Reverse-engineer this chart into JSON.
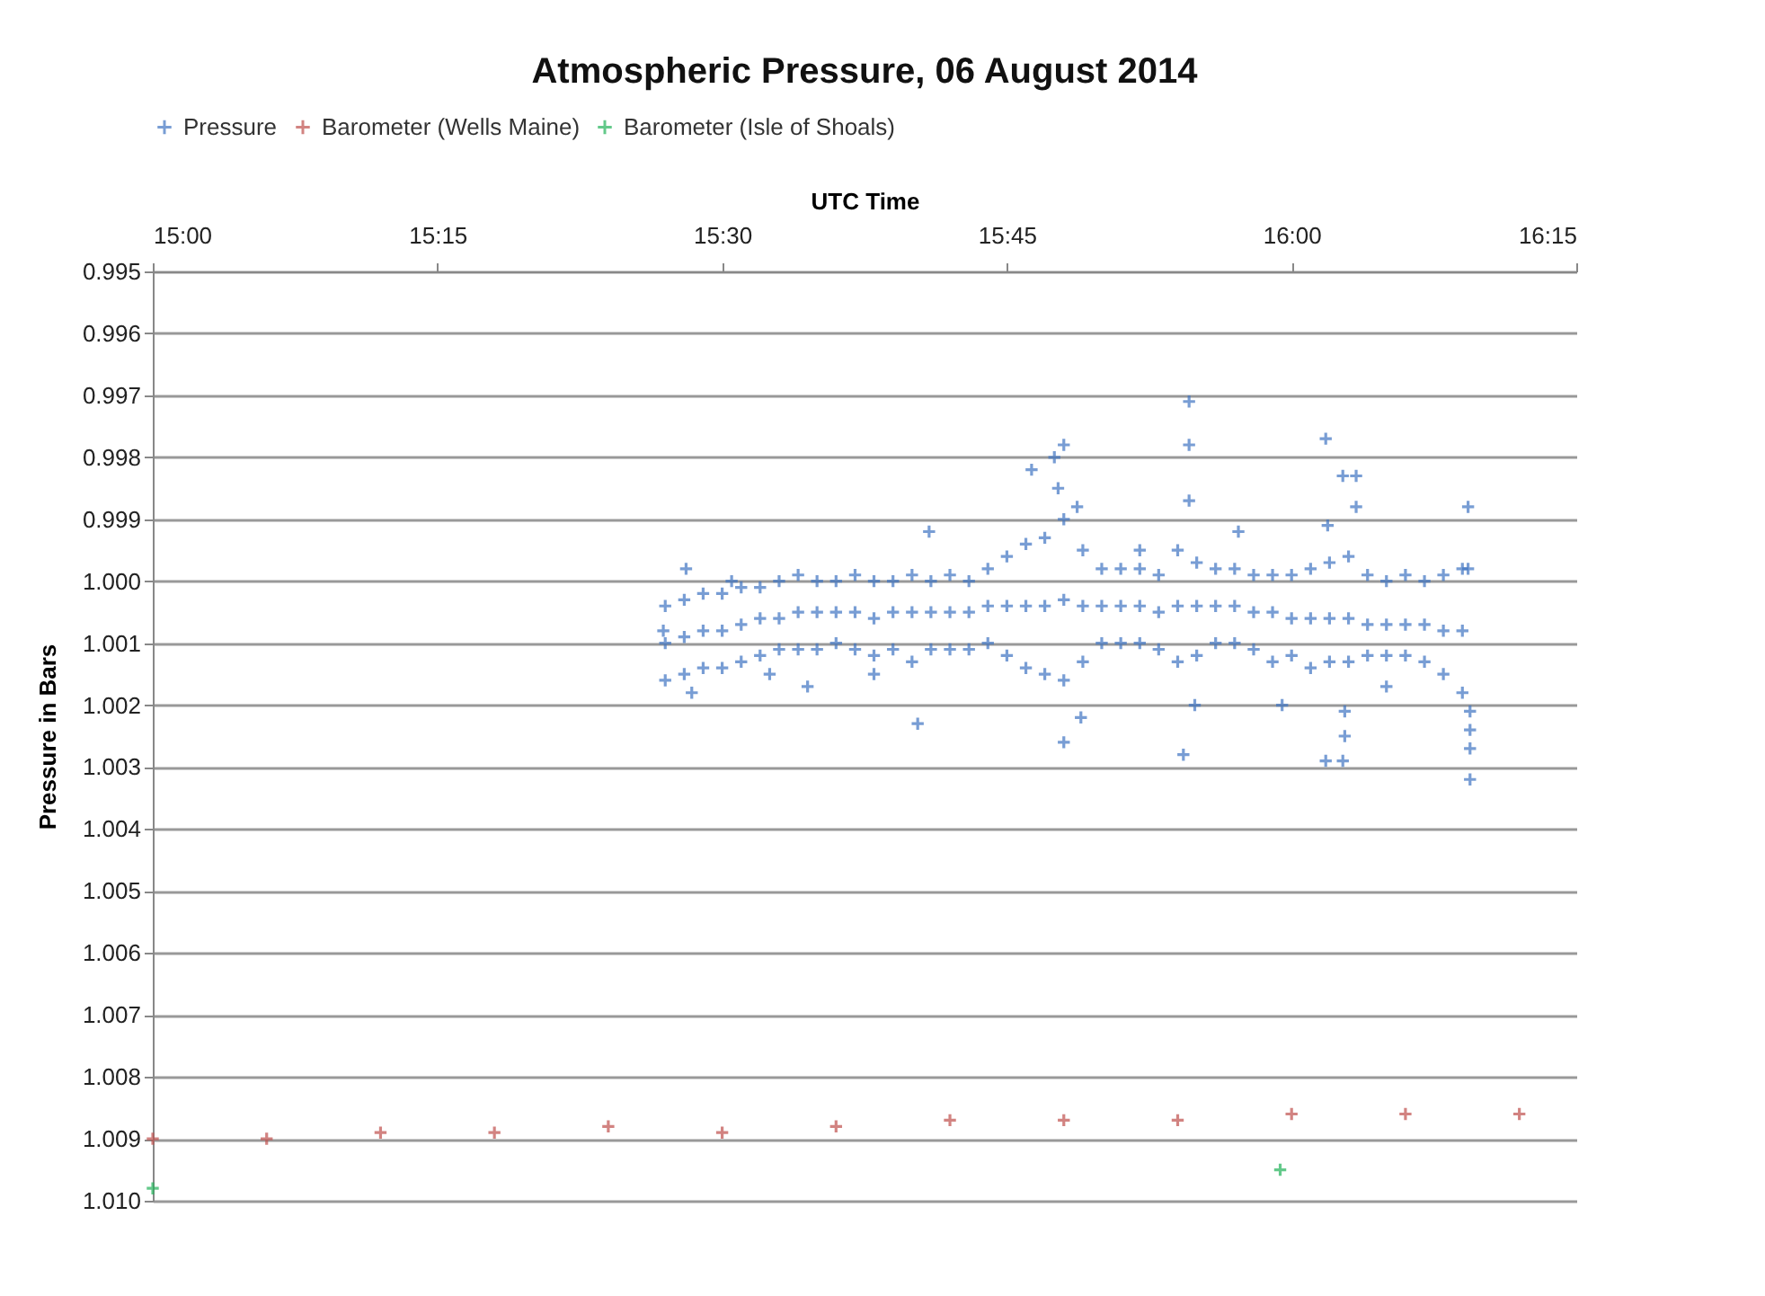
{
  "chart_data": {
    "type": "scatter",
    "title": "Atmospheric Pressure, 06 August 2014",
    "xlabel": "UTC Time",
    "ylabel": "Pressure in Bars",
    "xlim": [
      15,
      16.25
    ],
    "xticks": [
      {
        "value": 15,
        "label": "15:00"
      },
      {
        "value": 15.25,
        "label": "15:15"
      },
      {
        "value": 15.5,
        "label": "15:30"
      },
      {
        "value": 15.75,
        "label": "15:45"
      },
      {
        "value": 16,
        "label": "16:00"
      },
      {
        "value": 16.25,
        "label": "16:15"
      }
    ],
    "ylim": [
      1.01,
      0.995
    ],
    "yticks": [
      0.995,
      0.996,
      0.997,
      0.998,
      0.999,
      {
        "value": 1,
        "label": "1.000"
      },
      1.001,
      1.002,
      1.003,
      1.004,
      1.005,
      1.006,
      1.007,
      1.008,
      1.009,
      {
        "value": 1.01,
        "label": "1.010"
      }
    ],
    "grid": "y",
    "legend": "top",
    "series": [
      {
        "name": "Pressure",
        "color": "#3f74c2",
        "marker": "cross",
        "x": [
          15.45,
          15.45,
          15.45,
          15.4667,
          15.4667,
          15.4667,
          15.4833,
          15.4833,
          15.4833,
          15.5,
          15.5,
          15.5,
          15.5167,
          15.5167,
          15.5167,
          15.5333,
          15.5333,
          15.5333,
          15.55,
          15.55,
          15.55,
          15.5667,
          15.5667,
          15.5667,
          15.5833,
          15.5833,
          15.5833,
          15.6,
          15.6,
          15.6,
          15.6167,
          15.6167,
          15.6167,
          15.6333,
          15.6333,
          15.6333,
          15.65,
          15.65,
          15.65,
          15.6667,
          15.6667,
          15.6667,
          15.6833,
          15.6833,
          15.6833,
          15.7,
          15.7,
          15.7,
          15.7167,
          15.7167,
          15.7167,
          15.7333,
          15.7333,
          15.7333,
          15.75,
          15.75,
          15.75,
          15.7667,
          15.7667,
          15.7667,
          15.7833,
          15.7833,
          15.7833,
          15.8,
          15.8,
          15.8,
          15.8167,
          15.8167,
          15.8167,
          15.8333,
          15.8333,
          15.8333,
          15.85,
          15.85,
          15.85,
          15.8667,
          15.8667,
          15.8667,
          15.8833,
          15.8833,
          15.8833,
          15.9,
          15.9,
          15.9,
          15.9167,
          15.9167,
          15.9167,
          15.9333,
          15.9333,
          15.9333,
          15.95,
          15.95,
          15.95,
          15.9667,
          15.9667,
          15.9667,
          15.9833,
          15.9833,
          15.9833,
          16.0,
          16.0,
          16.0,
          16.0167,
          16.0167,
          16.0167,
          16.0333,
          16.0333,
          16.0333,
          16.05,
          16.05,
          16.05,
          16.0667,
          16.0667,
          16.0667,
          16.0833,
          16.0833,
          16.0833,
          16.1,
          16.1,
          16.1,
          16.1167,
          16.1167,
          16.1167,
          16.1333,
          16.1333,
          16.1333,
          16.15,
          16.15,
          16.15,
          15.91,
          15.91,
          15.91,
          15.7717,
          15.8,
          15.7917,
          15.795,
          15.8117,
          16.03,
          16.045,
          16.0567,
          16.0317,
          16.0567,
          16.155,
          16.155,
          15.4483,
          15.4733,
          15.5083,
          15.575,
          15.4683,
          15.6333,
          15.5417,
          15.6717,
          15.8,
          15.815,
          15.905,
          15.915,
          16.03,
          16.045,
          16.0467,
          16.0467,
          16.1567,
          16.1567,
          16.1567,
          16.1567,
          16.0833,
          15.9917,
          15.6817,
          15.9533,
          15.8667
        ],
        "values": [
          1.0004,
          1.001,
          1.0016,
          1.0003,
          1.0009,
          1.0015,
          1.0002,
          1.0008,
          1.0014,
          1.0002,
          1.0008,
          1.0014,
          1.0001,
          1.0007,
          1.0013,
          1.0001,
          1.0006,
          1.0012,
          1.0,
          1.0006,
          1.0011,
          0.9999,
          1.0005,
          1.0011,
          1.0,
          1.0005,
          1.0011,
          1.0,
          1.0005,
          1.001,
          0.9999,
          1.0005,
          1.0011,
          1.0,
          1.0006,
          1.0012,
          1.0,
          1.0005,
          1.0011,
          0.9999,
          1.0005,
          1.0013,
          1.0,
          1.0005,
          1.0011,
          0.9999,
          1.0005,
          1.0011,
          1.0,
          1.0005,
          1.0011,
          0.9998,
          1.0004,
          1.001,
          0.9996,
          1.0004,
          1.0012,
          0.9994,
          1.0004,
          1.0014,
          0.9993,
          1.0004,
          1.0015,
          0.999,
          1.0003,
          1.0016,
          0.9995,
          1.0004,
          1.0013,
          0.9998,
          1.0004,
          1.001,
          0.9998,
          1.0004,
          1.001,
          0.9998,
          1.0004,
          1.001,
          0.9999,
          1.0005,
          1.0011,
          0.9995,
          1.0004,
          1.0013,
          0.9997,
          1.0004,
          1.0012,
          0.9998,
          1.0004,
          1.001,
          0.9998,
          1.0004,
          1.001,
          0.9999,
          1.0005,
          1.0011,
          0.9999,
          1.0005,
          1.0013,
          0.9999,
          1.0006,
          1.0012,
          0.9998,
          1.0006,
          1.0014,
          0.9997,
          1.0006,
          1.0013,
          0.9996,
          1.0006,
          1.0013,
          0.9999,
          1.0007,
          1.0012,
          1.0,
          1.0007,
          1.0012,
          0.9999,
          1.0007,
          1.0012,
          1.0,
          1.0007,
          1.0013,
          0.9999,
          1.0008,
          1.0015,
          0.9998,
          1.0008,
          1.0018,
          0.9971,
          0.9978,
          0.9987,
          0.9982,
          0.9978,
          0.998,
          0.9985,
          0.9988,
          0.9977,
          0.9983,
          0.9983,
          0.9991,
          0.9988,
          0.9988,
          0.9998,
          1.0008,
          1.0018,
          1.0,
          1.0017,
          0.9998,
          1.0015,
          1.0015,
          1.0023,
          1.0026,
          1.0022,
          1.0028,
          1.002,
          1.0029,
          1.0029,
          1.0025,
          1.0021,
          1.0032,
          1.0027,
          1.0024,
          1.0021,
          1.0017,
          1.002,
          0.9992,
          0.9992,
          0.9995
        ]
      },
      {
        "name": "Barometer (Wells Maine)",
        "color": "#c0504d",
        "marker": "cross",
        "x": [
          15.0,
          15.1,
          15.2,
          15.3,
          15.4,
          15.5,
          15.6,
          15.7,
          15.8,
          15.9,
          16.0,
          16.1,
          16.2
        ],
        "values": [
          1.009,
          1.009,
          1.0089,
          1.0089,
          1.0088,
          1.0089,
          1.0088,
          1.0087,
          1.0087,
          1.0087,
          1.0086,
          1.0086,
          1.0086
        ]
      },
      {
        "name": "Barometer (Isle of Shoals)",
        "color": "#22b35a",
        "marker": "cross",
        "x": [
          15.0,
          15.99
        ],
        "values": [
          1.0098,
          1.0095
        ]
      }
    ]
  }
}
